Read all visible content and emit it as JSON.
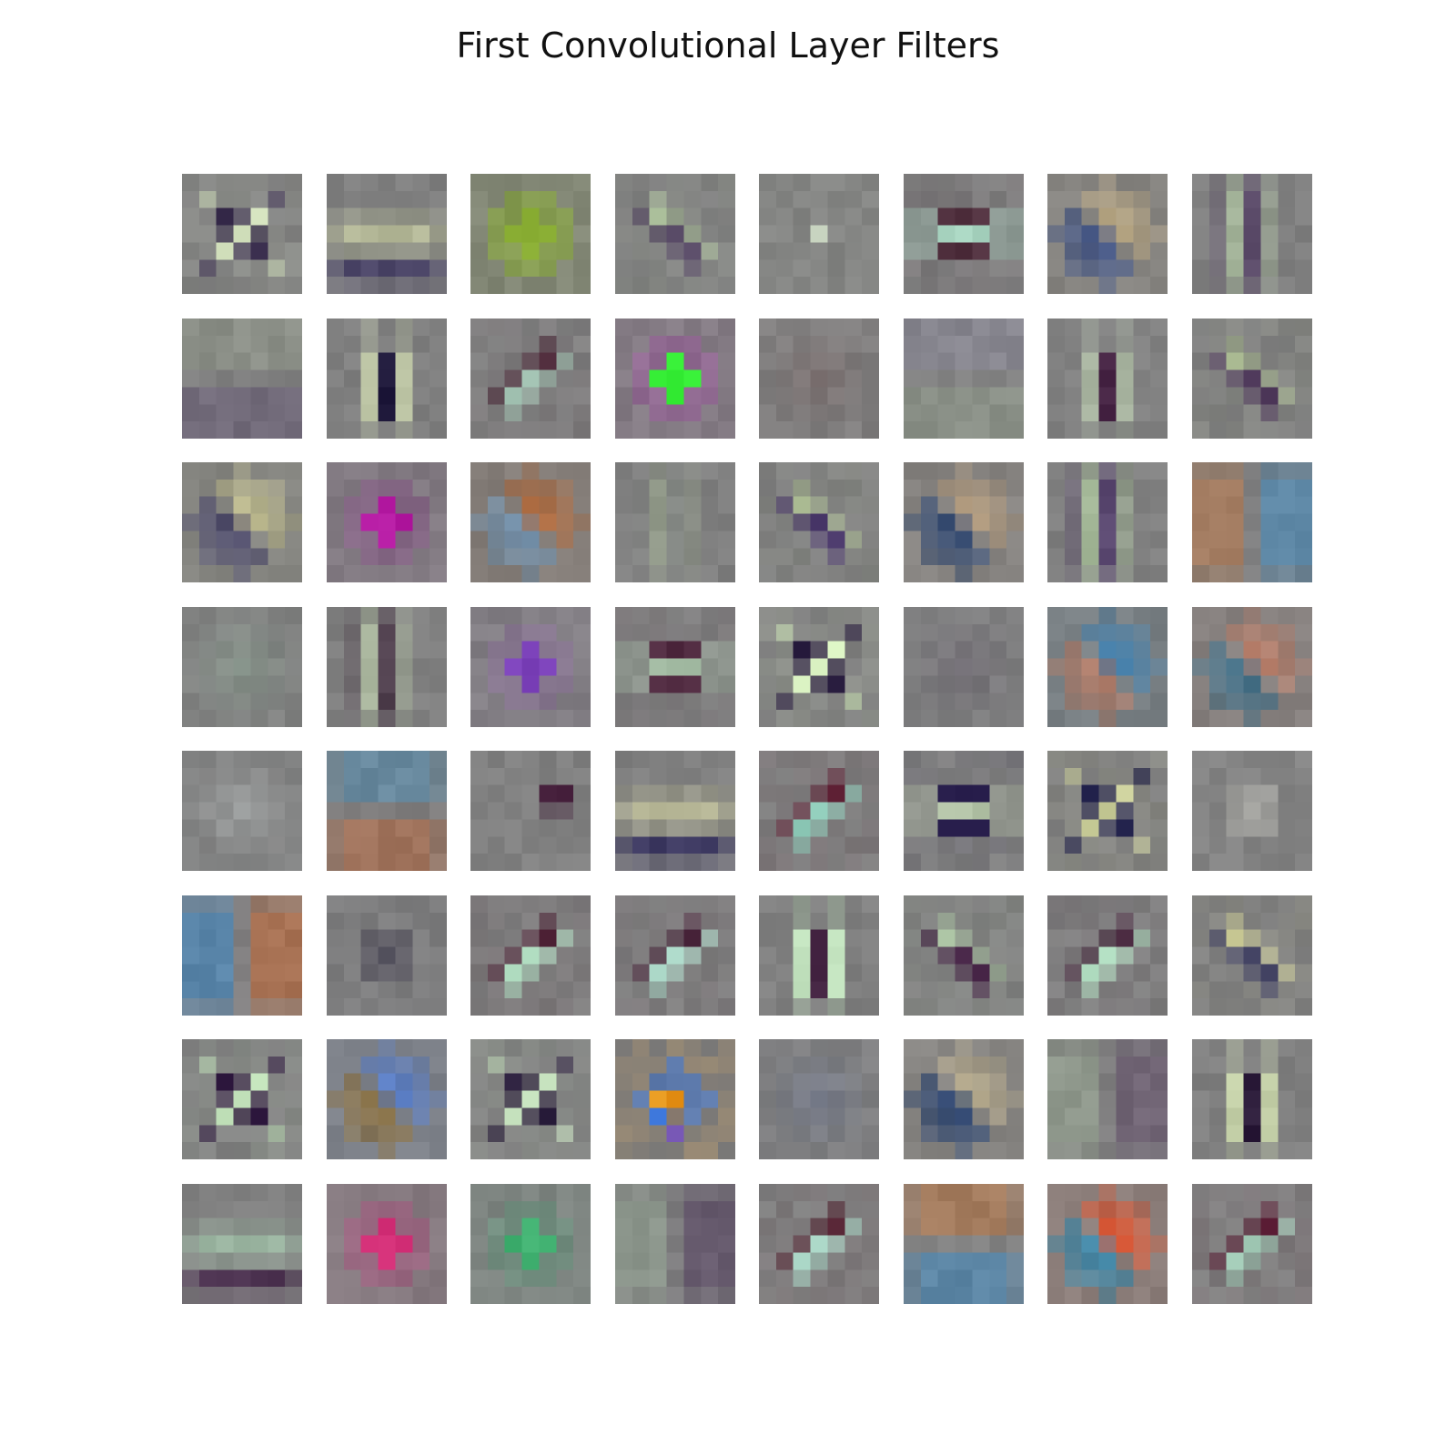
{
  "title": "First Convolutional Layer Filters",
  "figure": {
    "rows": 8,
    "cols": 8,
    "kernel_size": 7,
    "background_gray": "#808080"
  },
  "filters": [
    {
      "kind": "center_x",
      "a": "#d2e0bc",
      "b": "#3c3050"
    },
    {
      "kind": "hband",
      "a": "#b4b898",
      "b": "#4a4466"
    },
    {
      "kind": "blob",
      "a": "#8aae34"
    },
    {
      "kind": "diag",
      "a": "#a8bc98",
      "b": "#584a66"
    },
    {
      "kind": "dot",
      "a": "#c0ccb8"
    },
    {
      "kind": "hband_center",
      "a": "#a8d4c0",
      "b": "#50303e"
    },
    {
      "kind": "diag_color",
      "a": "#c8b080",
      "b": "#304888"
    },
    {
      "kind": "vband",
      "a": "#a4b49a",
      "b": "#5a4a68"
    },
    {
      "kind": "hsoft",
      "a": "#98a290",
      "b": "#5e5070"
    },
    {
      "kind": "vline",
      "a": "#c0c8a8",
      "b": "#201a3c"
    },
    {
      "kind": "diag2",
      "a": "#a0c0b0",
      "b": "#4e2a3a"
    },
    {
      "kind": "blob_ring",
      "a": "#38f038",
      "b": "#9a5c9c"
    },
    {
      "kind": "soft",
      "a": "#7e7070"
    },
    {
      "kind": "hsoft",
      "a": "#8e8ca0",
      "b": "#92a08c"
    },
    {
      "kind": "vline",
      "a": "#a8b4a0",
      "b": "#4a2848"
    },
    {
      "kind": "diag",
      "a": "#a8b890",
      "b": "#503a5c"
    },
    {
      "kind": "diag_color",
      "a": "#d0cc90",
      "b": "#3e3a64"
    },
    {
      "kind": "blob_ring",
      "a": "#b41aa2",
      "b": "#8a5a8a"
    },
    {
      "kind": "diag_color",
      "a": "#c06428",
      "b": "#6c94b8"
    },
    {
      "kind": "vband",
      "a": "#949c8c",
      "b": "#848884"
    },
    {
      "kind": "diag",
      "a": "#a8b890",
      "b": "#4e3c6e"
    },
    {
      "kind": "diag_color",
      "a": "#c8a880",
      "b": "#1e3c70"
    },
    {
      "kind": "vband",
      "a": "#a0b494",
      "b": "#5a4870"
    },
    {
      "kind": "vsplit",
      "a": "#ae7a56",
      "b": "#5088b0"
    },
    {
      "kind": "soft",
      "a": "#88988c"
    },
    {
      "kind": "vband",
      "a": "#a8b49c",
      "b": "#50404e"
    },
    {
      "kind": "blob_ring",
      "a": "#7a40b8",
      "b": "#8a7098"
    },
    {
      "kind": "hband_center",
      "a": "#a8c0a8",
      "b": "#502a40"
    },
    {
      "kind": "center_x",
      "a": "#d8f0c0",
      "b": "#2a1e40"
    },
    {
      "kind": "soft",
      "a": "#6e6a72"
    },
    {
      "kind": "diag_color",
      "a": "#2a7cb8",
      "b": "#c07a60"
    },
    {
      "kind": "diag_color",
      "a": "#d08064",
      "b": "#2e6a8a"
    },
    {
      "kind": "soft",
      "a": "#a0a4a4"
    },
    {
      "kind": "hsplit",
      "a": "#5e8aa6",
      "b": "#aa6e50"
    },
    {
      "kind": "corner_dot",
      "a": "#4a2440"
    },
    {
      "kind": "hband",
      "a": "#b8b898",
      "b": "#3e3a62"
    },
    {
      "kind": "diag2",
      "a": "#8ecab8",
      "b": "#5a1c30"
    },
    {
      "kind": "hband_center",
      "a": "#b4c4a8",
      "b": "#261c4a"
    },
    {
      "kind": "center_x",
      "a": "#c8cc98",
      "b": "#1e1e48"
    },
    {
      "kind": "dot",
      "a": "#b0b0ac"
    },
    {
      "kind": "vsplit",
      "a": "#4c86b6",
      "b": "#b46c44"
    },
    {
      "kind": "dot",
      "a": "#54525e"
    },
    {
      "kind": "diag2",
      "a": "#b8e4c8",
      "b": "#54283c"
    },
    {
      "kind": "diag2",
      "a": "#a8d4c4",
      "b": "#4e2a40"
    },
    {
      "kind": "vline",
      "a": "#c0e0bc",
      "b": "#4a2a48"
    },
    {
      "kind": "diag",
      "a": "#a8c0a0",
      "b": "#4a284a"
    },
    {
      "kind": "diag2",
      "a": "#b4e0c4",
      "b": "#4a2a40"
    },
    {
      "kind": "diag",
      "a": "#cccc98",
      "b": "#4a4a6a"
    },
    {
      "kind": "center_x",
      "a": "#c0e0b8",
      "b": "#301a40"
    },
    {
      "kind": "diag_color",
      "a": "#4a7ce0",
      "b": "#8a6a30"
    },
    {
      "kind": "center_x",
      "a": "#c8e4c0",
      "b": "#2a1e3c"
    },
    {
      "kind": "multi",
      "a": "#e08a10",
      "b": "#3a74d8",
      "c": "#7a5ab8"
    },
    {
      "kind": "soft",
      "a": "#72788a"
    },
    {
      "kind": "diag_color",
      "a": "#c8b890",
      "b": "#10306a"
    },
    {
      "kind": "vsplit",
      "a": "#94a090",
      "b": "#6a5a70"
    },
    {
      "kind": "vline",
      "a": "#c4d0a8",
      "b": "#2c1c3a"
    },
    {
      "kind": "hband",
      "a": "#9ab4a0",
      "b": "#4a304e"
    },
    {
      "kind": "blob_ring",
      "a": "#d02c74",
      "b": "#a85680"
    },
    {
      "kind": "blob_ring",
      "a": "#40b070",
      "b": "#6a9880"
    },
    {
      "kind": "vsplit",
      "a": "#8e9c8e",
      "b": "#5e4e68"
    },
    {
      "kind": "diag2",
      "a": "#a8d4c4",
      "b": "#5a2838"
    },
    {
      "kind": "hsplit",
      "a": "#b07a52",
      "b": "#4e86b0"
    },
    {
      "kind": "diag_color",
      "a": "#ff4a1a",
      "b": "#2a8cb8"
    },
    {
      "kind": "diag2",
      "a": "#a0c8b4",
      "b": "#5a1c34"
    }
  ]
}
